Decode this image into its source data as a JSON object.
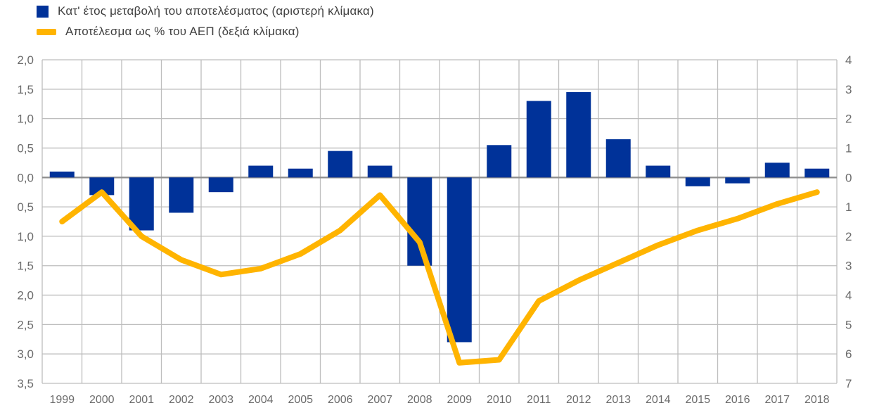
{
  "legend": {
    "items": [
      {
        "label": "Κατ' έτος μεταβολή του αποτελέσματος (αριστερή κλίμακα)",
        "color": "#003299",
        "marker": "square"
      },
      {
        "label": "Αποτέλεσμα ως % του ΑΕΠ (δεξιά κλίμακα)",
        "color": "#FFB400",
        "marker": "line"
      }
    ]
  },
  "chart_data": {
    "type": "combo",
    "categories": [
      "1999",
      "2000",
      "2001",
      "2002",
      "2003",
      "2004",
      "2005",
      "2006",
      "2007",
      "2008",
      "2009",
      "2010",
      "2011",
      "2012",
      "2013",
      "2014",
      "2015",
      "2016",
      "2017",
      "2018"
    ],
    "series": [
      {
        "name": "Κατ' έτος μεταβολή του αποτελέσματος (αριστερή κλίμακα)",
        "type": "bar",
        "axis": "left",
        "color": "#003299",
        "values": [
          0.1,
          -0.3,
          -0.9,
          -0.6,
          -0.25,
          0.2,
          0.15,
          0.45,
          0.2,
          -1.5,
          -2.8,
          0.55,
          1.3,
          1.45,
          0.65,
          0.2,
          -0.15,
          -0.1,
          0.25,
          0.15
        ]
      },
      {
        "name": "Αποτέλεσμα ως % του ΑΕΠ (δεξιά κλίμακα)",
        "type": "line",
        "axis": "right",
        "color": "#FFB400",
        "values": [
          -1.5,
          -0.5,
          -2.0,
          -2.8,
          -3.3,
          -3.1,
          -2.6,
          -1.8,
          -0.6,
          -2.2,
          -6.3,
          -6.2,
          -4.2,
          -3.5,
          -2.9,
          -2.3,
          -1.8,
          -1.4,
          -0.9,
          -0.5
        ]
      }
    ],
    "left_axis": {
      "max": 2.0,
      "min": -3.5,
      "step": 0.5,
      "tick_labels": [
        "2,0",
        "1,5",
        "1,0",
        "0,5",
        "0,0",
        "0,5",
        "1,0",
        "1,5",
        "2,0",
        "2,5",
        "3,0",
        "3,5"
      ]
    },
    "right_axis": {
      "max": 4,
      "min": -7,
      "step": 1,
      "tick_labels": [
        "4",
        "3",
        "2",
        "1",
        "0",
        "1",
        "2",
        "3",
        "4",
        "5",
        "6",
        "7"
      ]
    },
    "grid": true,
    "legend_position": "top-left",
    "colors": {
      "bar": "#003299",
      "line": "#FFB400",
      "grid": "#bdbdbd",
      "zero_line": "#8f8f8f",
      "axis_text": "#6b6b6b",
      "legend_text": "#3f3f3f",
      "background": "#ffffff"
    }
  }
}
